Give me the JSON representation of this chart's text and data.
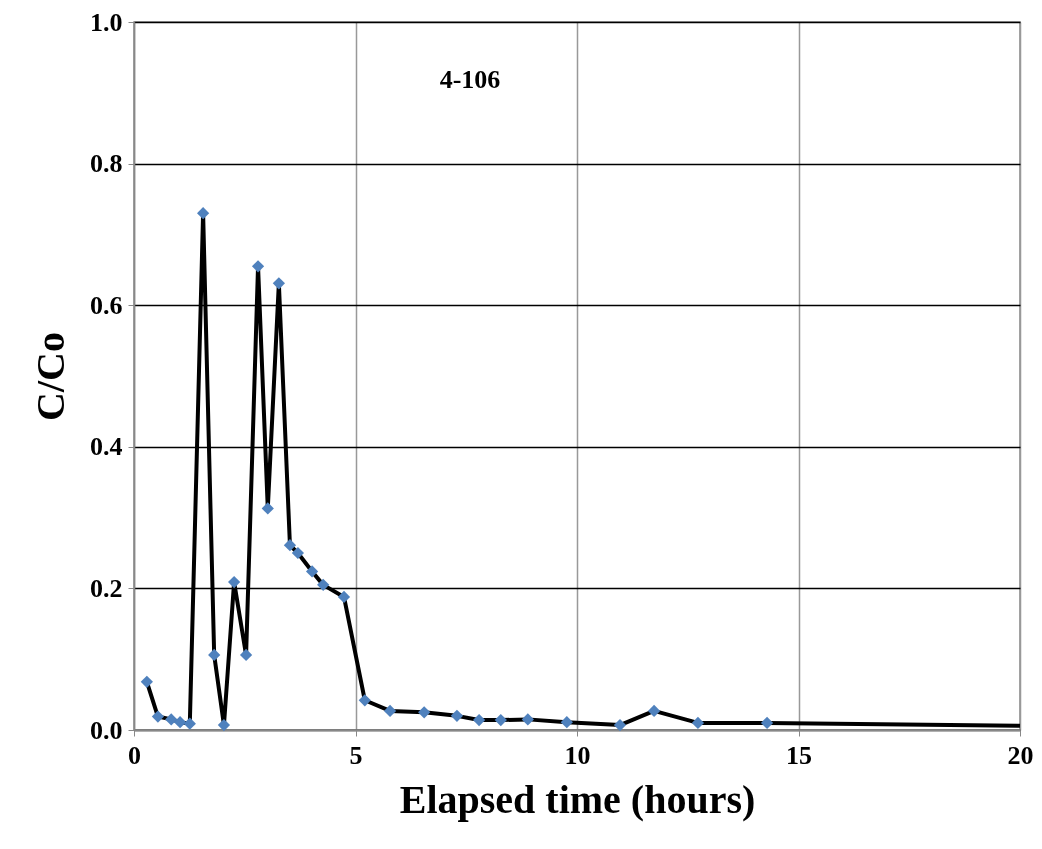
{
  "chart_data": {
    "type": "line",
    "xlabel": "Elapsed time (hours)",
    "ylabel": "C/Co",
    "annotations": [
      "4-106"
    ],
    "xlim": [
      0,
      20
    ],
    "xticks": [
      0,
      5,
      10,
      15,
      20
    ],
    "ylim": [
      0,
      1
    ],
    "yticks": [
      {
        "value": 0,
        "label": "0.0"
      },
      {
        "value": 0.2,
        "label": "0.2"
      },
      {
        "value": 0.4,
        "label": "0.4"
      },
      {
        "value": 0.6,
        "label": "0.6"
      },
      {
        "value": 0.8,
        "label": "0.8"
      },
      {
        "value": 1,
        "label": "1.0"
      }
    ],
    "grid": true,
    "series": [
      {
        "type": "line",
        "marker": "none",
        "color": "#000000",
        "x": [
          0.29,
          0.54,
          0.84,
          1.04,
          1.26,
          1.56,
          1.81,
          2.03,
          2.26,
          2.53,
          2.8,
          3.02,
          3.27,
          3.52,
          3.7,
          4.02,
          4.27,
          4.74,
          5.21,
          5.78,
          6.55,
          7.29,
          7.79,
          8.28,
          8.89,
          9.77,
          10.97,
          11.74,
          12.73,
          14.29,
          20
        ],
        "values": [
          0.068,
          0.019,
          0.015,
          0.011,
          0.009,
          0.73,
          0.106,
          0.007,
          0.209,
          0.106,
          0.655,
          0.313,
          0.631,
          0.261,
          0.25,
          0.224,
          0.205,
          0.188,
          0.042,
          0.027,
          0.025,
          0.02,
          0.014,
          0.014,
          0.015,
          0.011,
          0.007,
          0.027,
          0.01,
          0.01,
          0.006
        ]
      },
      {
        "type": "scatter",
        "marker": "diamond",
        "color": "#4f81bd",
        "x": [
          0.29,
          0.54,
          0.84,
          1.04,
          1.26,
          1.56,
          1.81,
          2.03,
          2.26,
          2.53,
          2.8,
          3.02,
          3.27,
          3.52,
          3.7,
          4.02,
          4.27,
          4.74,
          5.21,
          5.78,
          6.55,
          7.29,
          7.79,
          8.28,
          8.89,
          9.77,
          10.97,
          11.74,
          12.73,
          14.29
        ],
        "values": [
          0.068,
          0.019,
          0.015,
          0.011,
          0.009,
          0.73,
          0.106,
          0.007,
          0.209,
          0.106,
          0.655,
          0.313,
          0.631,
          0.261,
          0.25,
          0.224,
          0.205,
          0.188,
          0.042,
          0.027,
          0.025,
          0.02,
          0.014,
          0.014,
          0.015,
          0.011,
          0.007,
          0.027,
          0.01,
          0.01
        ]
      }
    ]
  }
}
